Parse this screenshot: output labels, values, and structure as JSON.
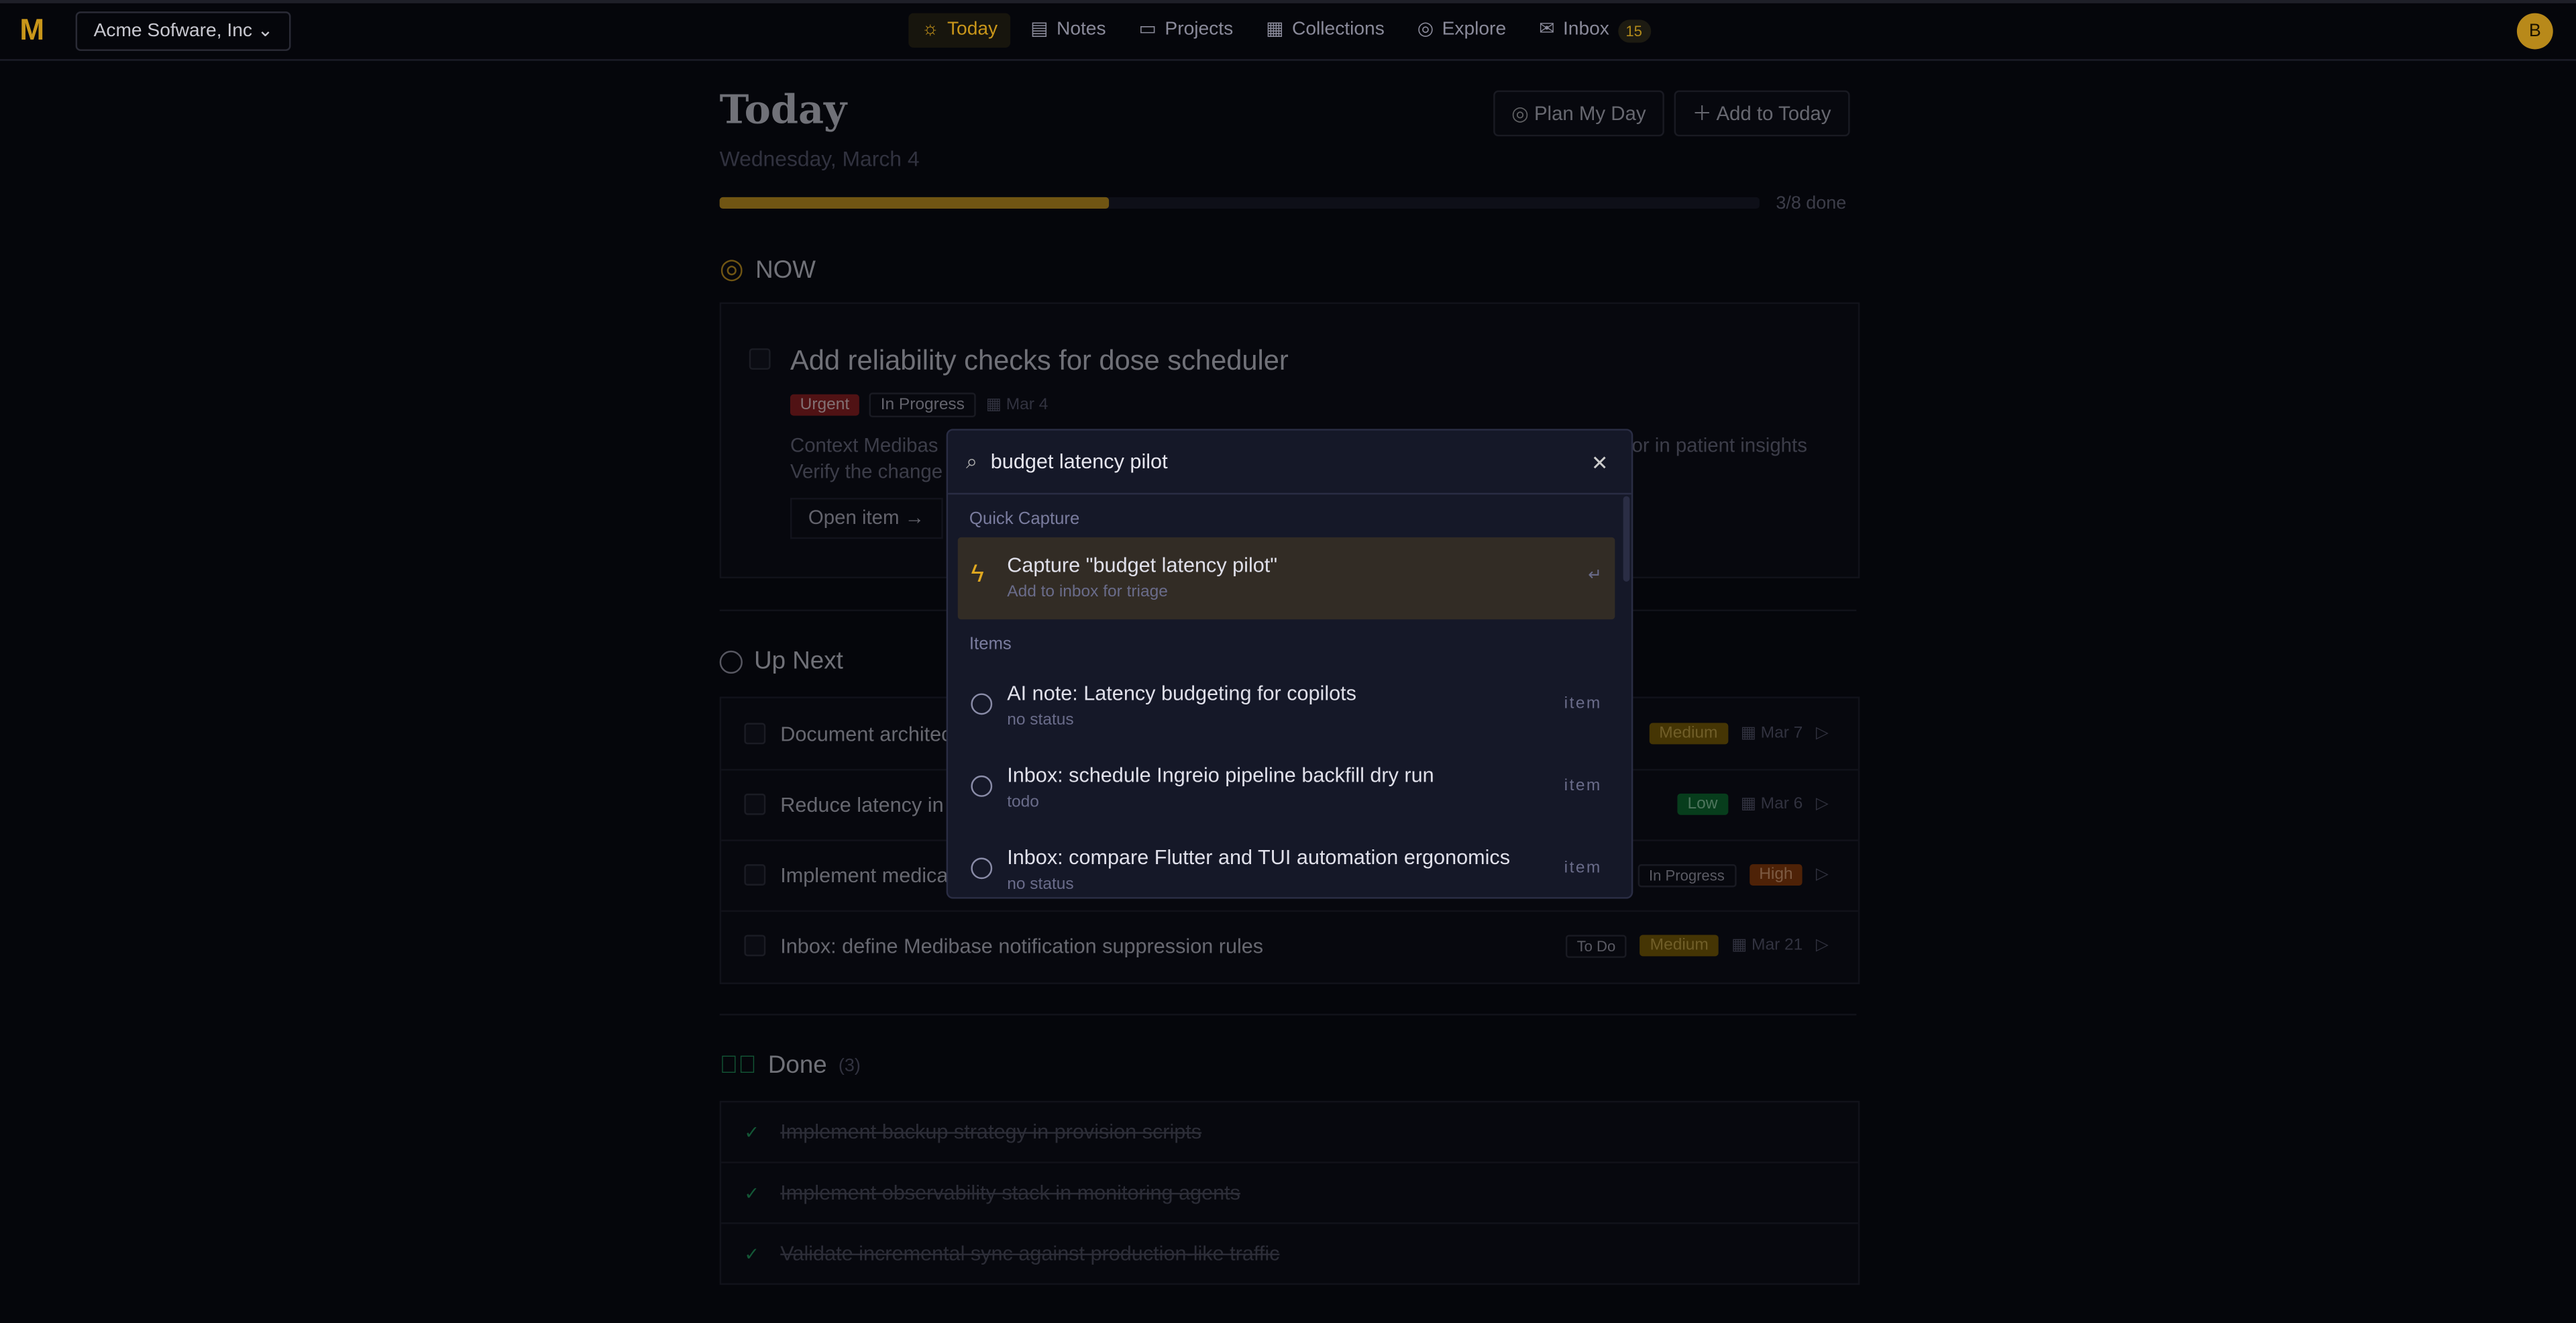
{
  "topbar": {
    "org": "Acme Sofware, Inc",
    "nav": [
      {
        "label": "Today",
        "icon": "sun-icon",
        "active": true
      },
      {
        "label": "Notes",
        "icon": "note-icon"
      },
      {
        "label": "Projects",
        "icon": "folder-icon"
      },
      {
        "label": "Collections",
        "icon": "grid-icon"
      },
      {
        "label": "Explore",
        "icon": "compass-icon"
      },
      {
        "label": "Inbox",
        "icon": "inbox-icon",
        "badge": "15"
      }
    ],
    "avatar": "B"
  },
  "header": {
    "title": "Today",
    "date": "Wednesday, March 4",
    "plan": "Plan My Day",
    "add": "Add to Today",
    "progress_text": "3/8 done",
    "progress": 0.375
  },
  "now": {
    "title": "NOW",
    "task": "Add reliability checks for dose scheduler",
    "priority": "Urgent",
    "status": "In Progress",
    "due": "Mar 4",
    "desc1": "Context Medibas",
    "desc1_end": "or in patient insights",
    "desc2": "Verify the change",
    "open": "Open item"
  },
  "upnext": {
    "title": "Up Next",
    "rows": [
      {
        "title": "Document architec",
        "priority": "Medium",
        "due": "Mar 7"
      },
      {
        "title": "Reduce latency in a",
        "priority": "Low",
        "due": "Mar 6"
      },
      {
        "title": "Implement medica",
        "status": "In Progress",
        "priority": "High"
      },
      {
        "title": "Inbox: define Medibase notification suppression rules",
        "status": "To Do",
        "priority": "Medium",
        "due": "Mar 21"
      }
    ]
  },
  "done": {
    "title": "Done",
    "count": "(3)",
    "rows": [
      "Implement backup strategy in provision scripts",
      "Implement observability stack in monitoring agents",
      "Validate incremental sync against production-like traffic"
    ]
  },
  "palette": {
    "query": "budget latency pilot",
    "quick_label": "Quick Capture",
    "capture_title": "Capture \"budget latency pilot\"",
    "capture_sub": "Add to inbox for triage",
    "enter": "↵",
    "items_label": "Items",
    "items": [
      {
        "title": "AI note: Latency budgeting for copilots",
        "sub": "no status",
        "kind": "item"
      },
      {
        "title": "Inbox: schedule Ingreio pipeline backfill dry run",
        "sub": "todo",
        "kind": "item"
      },
      {
        "title": "Inbox: compare Flutter and TUI automation ergonomics",
        "sub": "no status",
        "kind": "item"
      }
    ]
  },
  "colors": {
    "accent": "#c9961a",
    "urgent": "#8e1c1c",
    "medium": "#7a5c00",
    "low": "#0a6b2a",
    "high": "#8a3a05",
    "done": "#1f9a5a"
  }
}
